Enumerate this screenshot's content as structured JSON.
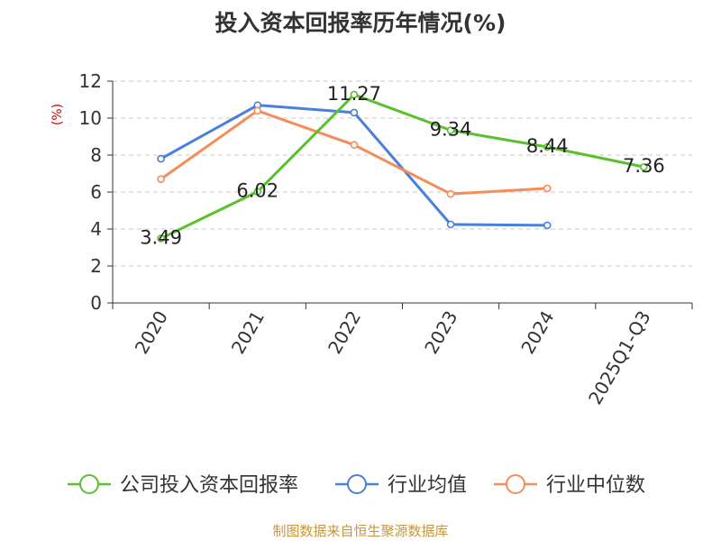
{
  "chart_data": {
    "type": "line",
    "title": "投入资本回报率历年情况(%)",
    "ylabel": "(%)",
    "categories": [
      "2020",
      "2021",
      "2022",
      "2023",
      "2024",
      "2025Q1-Q3"
    ],
    "ylim": [
      0,
      12
    ],
    "yticks": [
      0,
      2,
      4,
      6,
      8,
      10,
      12
    ],
    "grid": "horizontal dashed",
    "legend_position": "bottom",
    "series": [
      {
        "name": "公司投入资本回报率",
        "color": "#5ac12e",
        "values": [
          3.49,
          6.02,
          11.27,
          9.34,
          8.44,
          7.36
        ],
        "labels": true
      },
      {
        "name": "行业均值",
        "color": "#4a7fde",
        "values": [
          7.8,
          10.7,
          10.3,
          4.25,
          4.2,
          null
        ],
        "labels": false
      },
      {
        "name": "行业中位数",
        "color": "#f58d5a",
        "values": [
          6.7,
          10.4,
          8.55,
          5.9,
          6.2,
          null
        ],
        "labels": false
      }
    ]
  },
  "source": "制图数据来自恒生聚源数据库"
}
